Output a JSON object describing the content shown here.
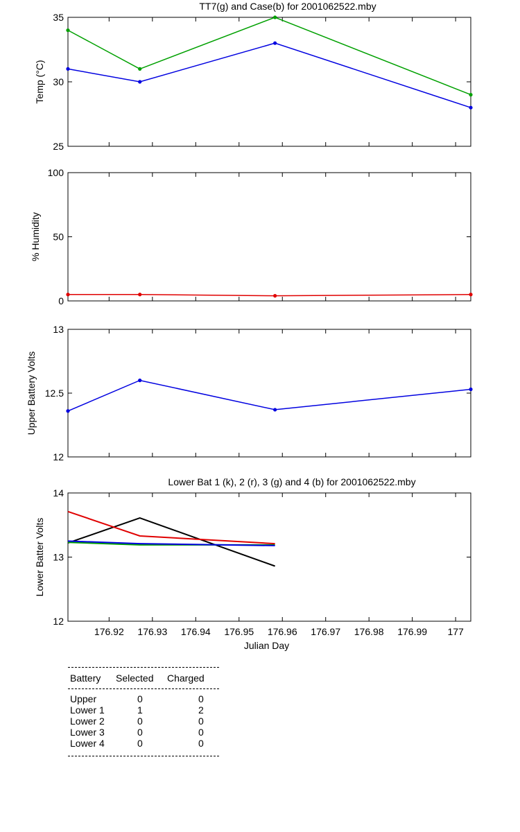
{
  "chart_data": [
    {
      "type": "line",
      "title": "TT7(g) and Case(b) for 2001062522.mby",
      "xlabel": "",
      "ylabel": "Temp  (°C)",
      "xlim": [
        176.9105,
        177.0035
      ],
      "ylim": [
        25,
        35
      ],
      "yticks": [
        "25",
        "30",
        "35"
      ],
      "grid": false,
      "x": [
        176.9105,
        176.9271,
        176.9583,
        177.0035
      ],
      "series": [
        {
          "color": "#00a000",
          "values": [
            34,
            31,
            35,
            29
          ]
        },
        {
          "color": "#0000e0",
          "values": [
            31,
            30,
            33,
            28
          ]
        }
      ]
    },
    {
      "type": "line",
      "title": "",
      "xlabel": "",
      "ylabel": "% Humidity",
      "xlim": [
        176.9105,
        177.0035
      ],
      "ylim": [
        0,
        100
      ],
      "yticks": [
        "0",
        "50",
        "100"
      ],
      "grid": false,
      "x": [
        176.9105,
        176.9271,
        176.9583,
        177.0035
      ],
      "series": [
        {
          "color": "#e00000",
          "values": [
            5,
            5,
            4,
            5
          ]
        }
      ]
    },
    {
      "type": "line",
      "title": "",
      "xlabel": "",
      "ylabel": "Upper Battery Volts",
      "xlim": [
        176.9105,
        177.0035
      ],
      "ylim": [
        12,
        13
      ],
      "yticks": [
        "12",
        "12.5",
        "13"
      ],
      "grid": false,
      "x": [
        176.9105,
        176.9271,
        176.9583,
        177.0035
      ],
      "series": [
        {
          "color": "#0000e0",
          "values": [
            12.36,
            12.6,
            12.37,
            12.53
          ]
        }
      ]
    },
    {
      "type": "line",
      "title": "Lower Bat 1 (k), 2 (r), 3 (g) and 4 (b) for 2001062522.mby",
      "xlabel": "Julian Day",
      "ylabel": "Lower Batter Volts",
      "xlim": [
        176.9105,
        177.0035
      ],
      "ylim": [
        12,
        14
      ],
      "yticks": [
        "12",
        "13",
        "14"
      ],
      "xticks": [
        176.92,
        176.93,
        176.94,
        176.95,
        176.96,
        176.97,
        176.98,
        176.99,
        177
      ],
      "xticklabels": [
        "176.92",
        "176.93",
        "176.94",
        "176.95",
        "176.96",
        "176.97",
        "176.98",
        "176.99",
        "177"
      ],
      "grid": false,
      "x": [
        176.9105,
        176.9271,
        176.9583
      ],
      "series": [
        {
          "color": "#000000",
          "values": [
            13.22,
            13.61,
            12.86
          ]
        },
        {
          "color": "#e00000",
          "values": [
            13.71,
            13.33,
            13.21
          ]
        },
        {
          "color": "#00a000",
          "values": [
            13.23,
            13.19,
            13.19
          ]
        },
        {
          "color": "#0000e0",
          "values": [
            13.25,
            13.21,
            13.18
          ]
        }
      ]
    }
  ],
  "battery_table": {
    "headers": [
      "Battery",
      "Selected",
      "Charged"
    ],
    "rows": [
      {
        "battery": "Upper",
        "selected": "0",
        "charged": "0"
      },
      {
        "battery": "Lower 1",
        "selected": "1",
        "charged": "2"
      },
      {
        "battery": "Lower 2",
        "selected": "0",
        "charged": "0"
      },
      {
        "battery": "Lower 3",
        "selected": "0",
        "charged": "0"
      },
      {
        "battery": "Lower 4",
        "selected": "0",
        "charged": "0"
      }
    ]
  }
}
